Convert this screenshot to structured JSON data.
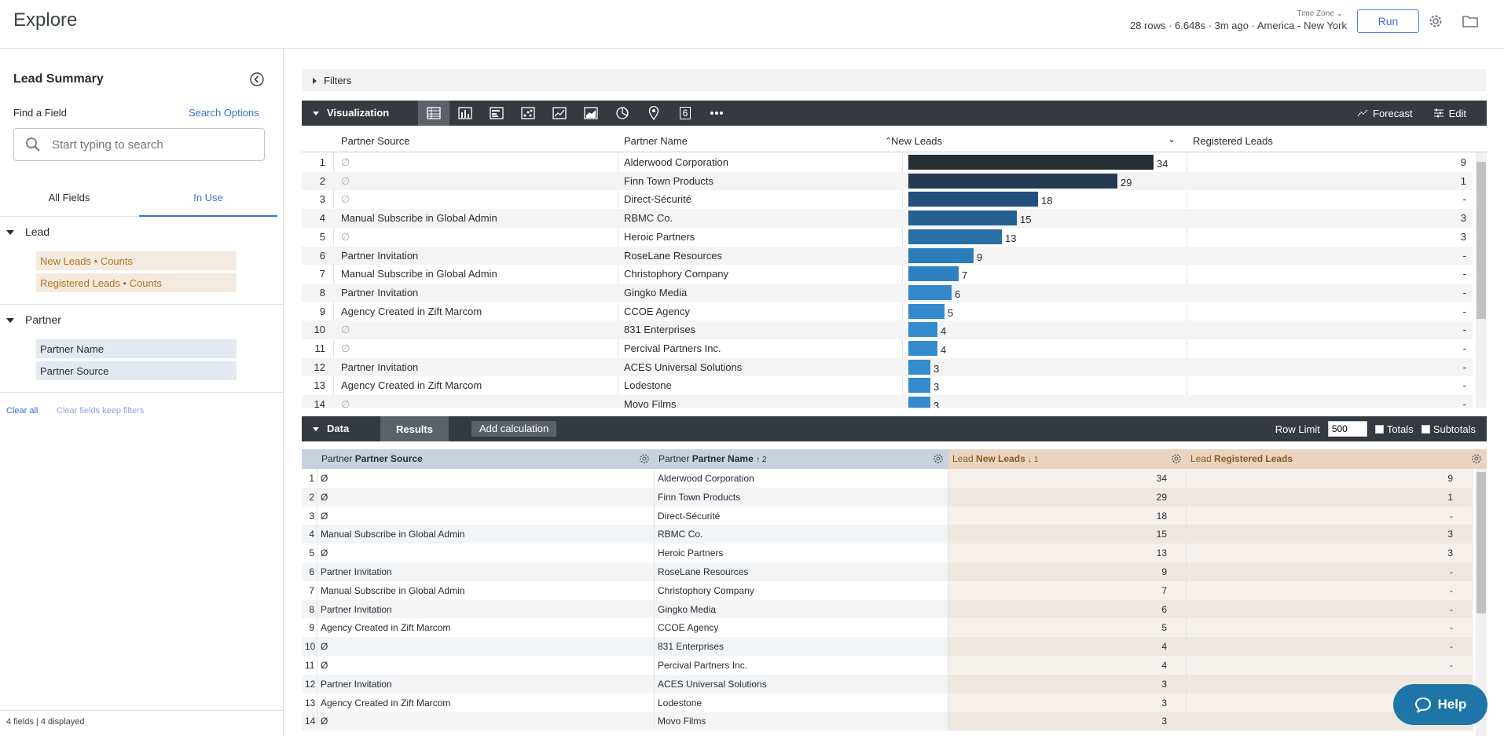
{
  "header": {
    "title": "Explore",
    "timezone_label": "Time Zone",
    "run_meta": "28 rows · 6.648s · 3m ago · America - New York",
    "run_label": "Run",
    "settings_icon": "gear-icon",
    "folder_icon": "folder-icon"
  },
  "sidebar": {
    "title": "Lead Summary",
    "find_label": "Find a Field",
    "search_options": "Search Options",
    "search_placeholder": "Start typing to search",
    "tabs": [
      "All Fields",
      "In Use"
    ],
    "groups": [
      {
        "name": "Lead",
        "fields": [
          "New Leads • Counts",
          "Registered Leads • Counts"
        ]
      },
      {
        "name": "Partner",
        "fields": [
          "Partner Name",
          "Partner Source"
        ]
      }
    ],
    "clear_all": "Clear all",
    "clear_keep": "Clear fields keep filters",
    "footer": "4 fields | 4 displayed"
  },
  "filters": {
    "label": "Filters"
  },
  "visualization": {
    "label": "Visualization",
    "forecast": "Forecast",
    "edit": "Edit",
    "icons": [
      "table-icon",
      "column-chart-icon",
      "bar-chart-icon",
      "scatter-icon",
      "line-chart-icon",
      "area-chart-icon",
      "pie-chart-icon",
      "map-pin-icon",
      "single-value-icon",
      "more-icon"
    ],
    "single_value_glyph": "6",
    "columns": [
      "Partner Source",
      "Partner Name",
      "New Leads",
      "Registered Leads"
    ],
    "null_glyph": "∅"
  },
  "data_panel": {
    "label": "Data",
    "results_tab": "Results",
    "add_calc": "Add calculation",
    "row_limit_label": "Row Limit",
    "row_limit_value": "500",
    "totals": "Totals",
    "subtotals": "Subtotals",
    "headers": [
      {
        "group": "Partner",
        "field": "Partner Source",
        "sort": ""
      },
      {
        "group": "Partner",
        "field": "Partner Name",
        "sort": "↑ 2"
      },
      {
        "group": "Lead",
        "field": "New Leads",
        "sort": "↓ 1"
      },
      {
        "group": "Lead",
        "field": "Registered Leads",
        "sort": ""
      }
    ],
    "null_glyph": "Ø"
  },
  "rows": [
    {
      "n": "1",
      "source": "",
      "name": "Alderwood Corporation",
      "new_leads": 34,
      "registered": "9"
    },
    {
      "n": "2",
      "source": "",
      "name": "Finn Town Products",
      "new_leads": 29,
      "registered": "1"
    },
    {
      "n": "3",
      "source": "",
      "name": "Direct-Sécurité",
      "new_leads": 18,
      "registered": "-"
    },
    {
      "n": "4",
      "source": "Manual Subscribe in Global Admin",
      "name": "RBMC Co.",
      "new_leads": 15,
      "registered": "3"
    },
    {
      "n": "5",
      "source": "",
      "name": "Heroic Partners",
      "new_leads": 13,
      "registered": "3"
    },
    {
      "n": "6",
      "source": "Partner Invitation",
      "name": "RoseLane Resources",
      "new_leads": 9,
      "registered": "-"
    },
    {
      "n": "7",
      "source": "Manual Subscribe in Global Admin",
      "name": "Christophory Company",
      "new_leads": 7,
      "registered": "-"
    },
    {
      "n": "8",
      "source": "Partner Invitation",
      "name": "Gingko Media",
      "new_leads": 6,
      "registered": "-"
    },
    {
      "n": "9",
      "source": "Agency Created in Zift Marcom",
      "name": "CCOE Agency",
      "new_leads": 5,
      "registered": "-"
    },
    {
      "n": "10",
      "source": "",
      "name": "831 Enterprises",
      "new_leads": 4,
      "registered": "-"
    },
    {
      "n": "11",
      "source": "",
      "name": "Percival Partners Inc.",
      "new_leads": 4,
      "registered": "-"
    },
    {
      "n": "12",
      "source": "Partner Invitation",
      "name": "ACES Universal Solutions",
      "new_leads": 3,
      "registered": "-"
    },
    {
      "n": "13",
      "source": "Agency Created in Zift Marcom",
      "name": "Lodestone",
      "new_leads": 3,
      "registered": "-"
    },
    {
      "n": "14",
      "source": "",
      "name": "Movo Films",
      "new_leads": 3,
      "registered": "-"
    }
  ],
  "bar_scale_max": 34,
  "bar_colors": [
    "#262d33",
    "#263a4f",
    "#23507a",
    "#235f91",
    "#2670a6",
    "#2b7cb8",
    "#2f82c2",
    "#3288c9",
    "#3389cc",
    "#348bce",
    "#348bce",
    "#348bce",
    "#348bce",
    "#348bce"
  ],
  "help": {
    "label": "Help",
    "icon": "chat-icon"
  }
}
